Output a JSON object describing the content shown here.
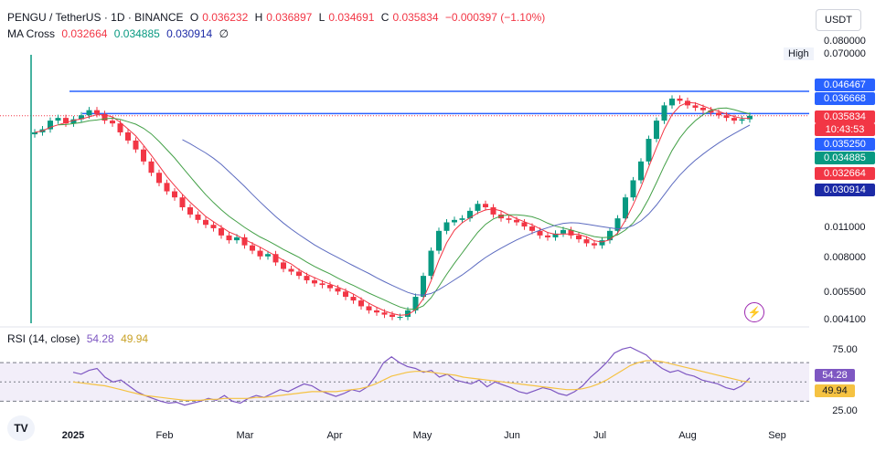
{
  "header": {
    "symbol": "PENGU / TetherUS · 1D · BINANCE",
    "o_label": "O",
    "o_value": "0.036232",
    "h_label": "H",
    "h_value": "0.036897",
    "l_label": "L",
    "l_value": "0.034691",
    "c_label": "C",
    "c_value": "0.035834",
    "change": "−0.000397 (−1.10%)",
    "ma_label": "MA Cross",
    "ma_fast": "0.032664",
    "ma_mid": "0.034885",
    "ma_slow": "0.030914",
    "ma_empty": "∅"
  },
  "toolbar": {
    "currency": "USDT",
    "high_label": "High"
  },
  "rsi": {
    "label": "RSI (14, close)",
    "value": "54.28",
    "ma_value": "49.94"
  },
  "logo": "TV",
  "colors": {
    "up": "#089981",
    "down": "#f23645",
    "ma_fast": "#f23645",
    "ma_mid": "#43a047",
    "ma_slow": "#5c6bc0",
    "level_line": "#2962ff",
    "rsi_line": "#7e57c2",
    "rsi_ma": "#f5c242",
    "rsi_band": "#ede7f6"
  },
  "chart_data": {
    "type": "candlestick",
    "scale": "log",
    "price_ticks": [
      "0.080000",
      "0.070000",
      "0.011000",
      "0.008000",
      "0.005500",
      "0.004100"
    ],
    "price_tags": [
      {
        "value": "0.046467",
        "color": "#2962ff"
      },
      {
        "value": "0.036668",
        "color": "#2962ff"
      },
      {
        "value": "0.035834",
        "color": "#f23645"
      },
      {
        "value": "10:43:53",
        "color": "#f23645"
      },
      {
        "value": "0.035250",
        "color": "#2962ff"
      },
      {
        "value": "0.034885",
        "color": "#089981"
      },
      {
        "value": "0.032664",
        "color": "#f23645"
      },
      {
        "value": "0.030914",
        "color": "#1c2aa6"
      }
    ],
    "x_ticks": [
      "2025",
      "Feb",
      "Mar",
      "Apr",
      "May",
      "Jun",
      "Jul",
      "Aug",
      "Sep"
    ],
    "rsi_ticks": [
      "75.00",
      "25.00"
    ],
    "rsi_levels": [
      70,
      50,
      30
    ],
    "series_close_path": [
      0.03,
      0.031,
      0.034,
      0.035,
      0.033,
      0.0345,
      0.036,
      0.038,
      0.0365,
      0.034,
      0.033,
      0.03,
      0.0275,
      0.025,
      0.022,
      0.0195,
      0.0175,
      0.016,
      0.015,
      0.0135,
      0.0125,
      0.0118,
      0.0112,
      0.0108,
      0.01,
      0.0095,
      0.0098,
      0.009,
      0.0085,
      0.008,
      0.0082,
      0.0075,
      0.007,
      0.0068,
      0.0065,
      0.0062,
      0.006,
      0.0059,
      0.0057,
      0.0055,
      0.0052,
      0.005,
      0.0047,
      0.0045,
      0.0044,
      0.0043,
      0.0042,
      0.0042,
      0.0045,
      0.0052,
      0.0065,
      0.0085,
      0.0105,
      0.0115,
      0.0118,
      0.012,
      0.013,
      0.014,
      0.0135,
      0.0125,
      0.012,
      0.0118,
      0.0115,
      0.011,
      0.0105,
      0.01,
      0.0098,
      0.0102,
      0.0106,
      0.01,
      0.0096,
      0.0092,
      0.009,
      0.0095,
      0.0105,
      0.012,
      0.015,
      0.018,
      0.022,
      0.028,
      0.034,
      0.04,
      0.043,
      0.042,
      0.04,
      0.039,
      0.038,
      0.037,
      0.036,
      0.035,
      0.034,
      0.0345,
      0.0358
    ],
    "rsi_series": [
      60,
      58,
      62,
      64,
      55,
      50,
      52,
      46,
      40,
      36,
      33,
      30,
      28,
      29,
      26,
      28,
      30,
      33,
      31,
      36,
      30,
      28,
      33,
      36,
      34,
      38,
      42,
      40,
      44,
      48,
      46,
      41,
      38,
      35,
      38,
      42,
      40,
      45,
      56,
      70,
      76,
      70,
      66,
      64,
      60,
      62,
      55,
      58,
      52,
      50,
      48,
      52,
      45,
      50,
      47,
      44,
      40,
      38,
      41,
      44,
      42,
      38,
      36,
      40,
      46,
      55,
      62,
      70,
      80,
      84,
      86,
      82,
      78,
      70,
      64,
      60,
      62,
      58,
      56,
      52,
      50,
      48,
      44,
      42,
      46,
      54.28
    ],
    "rsi_ma_series": [
      50,
      49,
      48,
      47,
      46,
      44,
      42,
      40,
      38,
      36,
      35,
      34,
      33,
      32,
      31,
      31,
      31,
      32,
      32,
      33,
      33,
      33,
      33,
      34,
      34,
      35,
      36,
      37,
      38,
      39,
      40,
      40,
      40,
      40,
      41,
      42,
      43,
      45,
      48,
      52,
      56,
      58,
      60,
      61,
      61,
      60,
      59,
      58,
      57,
      55,
      54,
      53,
      52,
      51,
      50,
      49,
      48,
      47,
      46,
      45,
      44,
      43,
      42,
      42,
      43,
      45,
      48,
      52,
      57,
      62,
      67,
      70,
      72,
      72,
      71,
      69,
      67,
      65,
      63,
      61,
      59,
      57,
      55,
      53,
      51,
      49.94
    ]
  }
}
